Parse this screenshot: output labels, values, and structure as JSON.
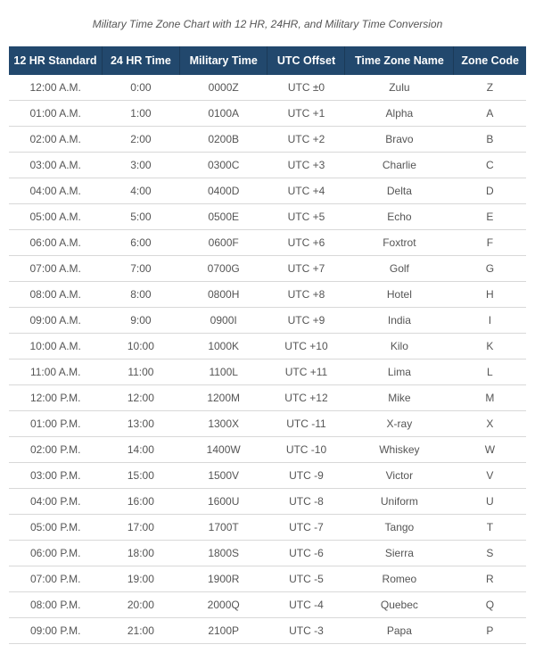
{
  "title": "Military Time Zone Chart with 12 HR, 24HR, and Military Time Conversion",
  "table": {
    "type": "table",
    "header_bg": "#22486d",
    "header_fg": "#ffffff",
    "row_border": "#d8d8d8",
    "text_color": "#555555",
    "title_fontsize": 12,
    "header_fontsize": 12.5,
    "cell_fontsize": 12,
    "columns": [
      "12 HR Standard",
      "24 HR Time",
      "Military Time",
      "UTC Offset",
      "Time Zone Name",
      "Zone Code"
    ],
    "rows": [
      [
        "12:00 A.M.",
        "0:00",
        "0000Z",
        "UTC ±0",
        "Zulu",
        "Z"
      ],
      [
        "01:00 A.M.",
        "1:00",
        "0100A",
        "UTC +1",
        "Alpha",
        "A"
      ],
      [
        "02:00 A.M.",
        "2:00",
        "0200B",
        "UTC +2",
        "Bravo",
        "B"
      ],
      [
        "03:00 A.M.",
        "3:00",
        "0300C",
        "UTC +3",
        "Charlie",
        "C"
      ],
      [
        "04:00 A.M.",
        "4:00",
        "0400D",
        "UTC +4",
        "Delta",
        "D"
      ],
      [
        "05:00 A.M.",
        "5:00",
        "0500E",
        "UTC +5",
        "Echo",
        "E"
      ],
      [
        "06:00 A.M.",
        "6:00",
        "0600F",
        "UTC +6",
        "Foxtrot",
        "F"
      ],
      [
        "07:00 A.M.",
        "7:00",
        "0700G",
        "UTC +7",
        "Golf",
        "G"
      ],
      [
        "08:00 A.M.",
        "8:00",
        "0800H",
        "UTC +8",
        "Hotel",
        "H"
      ],
      [
        "09:00 A.M.",
        "9:00",
        "0900I",
        "UTC +9",
        "India",
        "I"
      ],
      [
        "10:00 A.M.",
        "10:00",
        "1000K",
        "UTC +10",
        "Kilo",
        "K"
      ],
      [
        "11:00 A.M.",
        "11:00",
        "1100L",
        "UTC +11",
        "Lima",
        "L"
      ],
      [
        "12:00 P.M.",
        "12:00",
        "1200M",
        "UTC +12",
        "Mike",
        "M"
      ],
      [
        "01:00 P.M.",
        "13:00",
        "1300X",
        "UTC -11",
        "X-ray",
        "X"
      ],
      [
        "02:00 P.M.",
        "14:00",
        "1400W",
        "UTC -10",
        "Whiskey",
        "W"
      ],
      [
        "03:00 P.M.",
        "15:00",
        "1500V",
        "UTC -9",
        "Victor",
        "V"
      ],
      [
        "04:00 P.M.",
        "16:00",
        "1600U",
        "UTC -8",
        "Uniform",
        "U"
      ],
      [
        "05:00 P.M.",
        "17:00",
        "1700T",
        "UTC -7",
        "Tango",
        "T"
      ],
      [
        "06:00 P.M.",
        "18:00",
        "1800S",
        "UTC -6",
        "Sierra",
        "S"
      ],
      [
        "07:00 P.M.",
        "19:00",
        "1900R",
        "UTC -5",
        "Romeo",
        "R"
      ],
      [
        "08:00 P.M.",
        "20:00",
        "2000Q",
        "UTC -4",
        "Quebec",
        "Q"
      ],
      [
        "09:00 P.M.",
        "21:00",
        "2100P",
        "UTC -3",
        "Papa",
        "P"
      ]
    ]
  }
}
